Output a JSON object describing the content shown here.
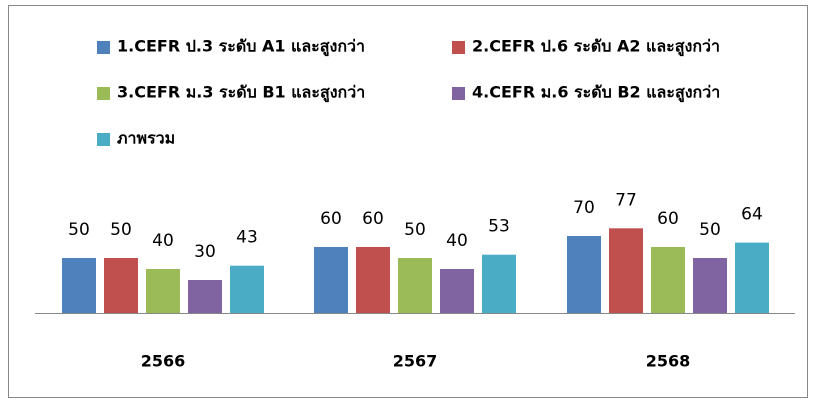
{
  "chart_data": {
    "type": "bar",
    "categories": [
      "2566",
      "2567",
      "2568"
    ],
    "series": [
      {
        "name": "1.CEFR ป.3 ระดับ A1 และสูงกว่า",
        "color": "#4f81bd",
        "values": [
          50,
          60,
          70
        ]
      },
      {
        "name": "2.CEFR ป.6 ระดับ A2 และสูงกว่า",
        "color": "#c0504d",
        "values": [
          50,
          60,
          77
        ]
      },
      {
        "name": "3.CEFR ม.3 ระดับ B1 และสูงกว่า",
        "color": "#9bbb59",
        "values": [
          40,
          50,
          60
        ]
      },
      {
        "name": "4.CEFR ม.6 ระดับ B2 และสูงกว่า",
        "color": "#8064a2",
        "values": [
          30,
          40,
          50
        ]
      },
      {
        "name": "ภาพรวม",
        "color": "#4bacc6",
        "values": [
          43,
          53,
          64
        ]
      }
    ]
  }
}
